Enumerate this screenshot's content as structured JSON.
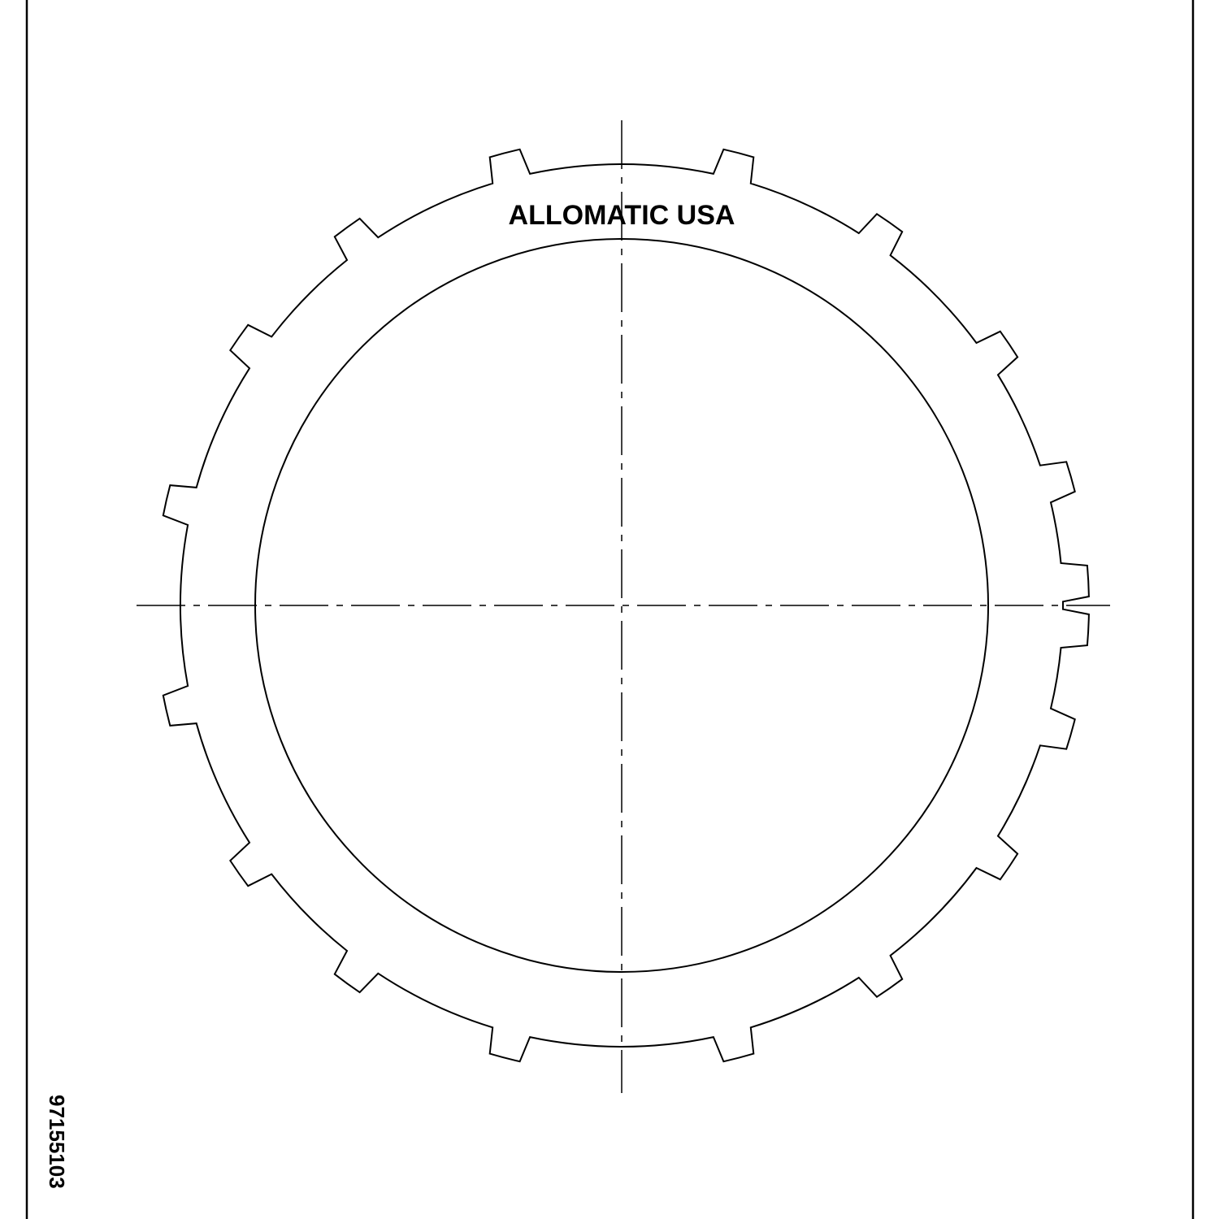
{
  "drawing": {
    "brand_label": "ALLOMATIC USA",
    "part_code": "97155103",
    "line_color": "#000000",
    "background_color": "#ffffff"
  }
}
